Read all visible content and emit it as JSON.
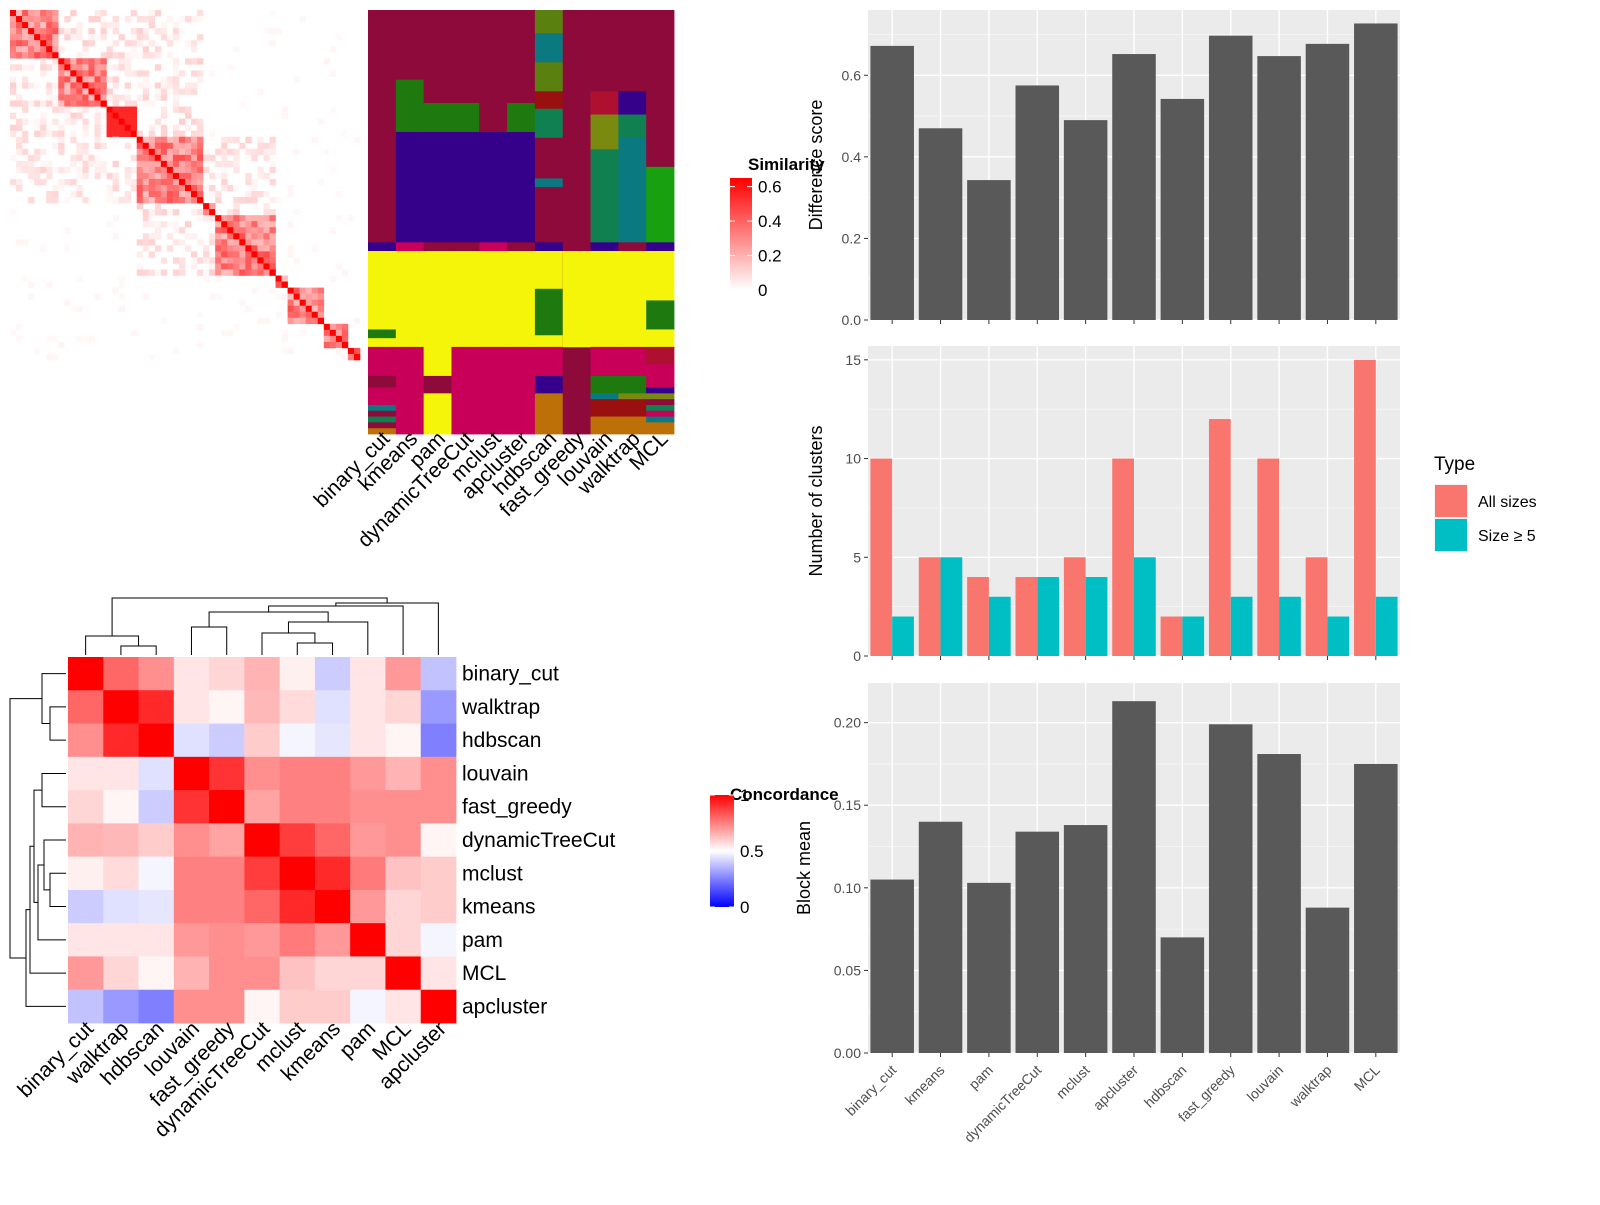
{
  "methods": [
    "binary_cut",
    "kmeans",
    "pam",
    "dynamicTreeCut",
    "mclust",
    "apcluster",
    "hdbscan",
    "fast_greedy",
    "louvain",
    "walktrap",
    "MCL"
  ],
  "similarity_legend": {
    "title": "Similarity",
    "ticks": [
      "0",
      "0.2",
      "0.4",
      "0.6"
    ],
    "tick_values": [
      0,
      0.2,
      0.4,
      0.6
    ],
    "max": 0.65
  },
  "concordance_legend": {
    "title": "Concordance",
    "ticks": [
      "0",
      "0.5",
      "1"
    ],
    "tick_values": [
      0,
      0.5,
      1
    ]
  },
  "heatmap_order": [
    "binary_cut",
    "walktrap",
    "hdbscan",
    "louvain",
    "fast_greedy",
    "dynamicTreeCut",
    "mclust",
    "kmeans",
    "pam",
    "MCL",
    "apcluster"
  ],
  "concordance_matrix": [
    [
      1.0,
      0.8,
      0.72,
      0.55,
      0.58,
      0.65,
      0.53,
      0.4,
      0.55,
      0.7,
      0.38
    ],
    [
      0.8,
      1.0,
      0.92,
      0.55,
      0.52,
      0.64,
      0.57,
      0.44,
      0.55,
      0.58,
      0.3
    ],
    [
      0.72,
      0.92,
      1.0,
      0.44,
      0.4,
      0.6,
      0.48,
      0.45,
      0.55,
      0.52,
      0.25
    ],
    [
      0.55,
      0.55,
      0.44,
      1.0,
      0.9,
      0.72,
      0.75,
      0.75,
      0.7,
      0.65,
      0.72
    ],
    [
      0.58,
      0.52,
      0.4,
      0.9,
      1.0,
      0.68,
      0.75,
      0.75,
      0.72,
      0.72,
      0.72
    ],
    [
      0.65,
      0.64,
      0.6,
      0.72,
      0.68,
      1.0,
      0.88,
      0.8,
      0.7,
      0.72,
      0.52
    ],
    [
      0.53,
      0.57,
      0.48,
      0.75,
      0.75,
      0.88,
      1.0,
      0.92,
      0.76,
      0.62,
      0.6
    ],
    [
      0.4,
      0.44,
      0.45,
      0.75,
      0.75,
      0.8,
      0.92,
      1.0,
      0.7,
      0.58,
      0.6
    ],
    [
      0.55,
      0.55,
      0.55,
      0.7,
      0.72,
      0.7,
      0.76,
      0.7,
      1.0,
      0.58,
      0.48
    ],
    [
      0.7,
      0.58,
      0.52,
      0.65,
      0.72,
      0.72,
      0.62,
      0.58,
      0.58,
      1.0,
      0.55
    ],
    [
      0.38,
      0.3,
      0.25,
      0.72,
      0.72,
      0.52,
      0.6,
      0.6,
      0.48,
      0.55,
      1.0
    ]
  ],
  "cluster_colors": {
    "purple": "#8E0A3A",
    "green": "#1E7A0E",
    "indigo": "#35008A",
    "yellow": "#F5F50A",
    "magenta": "#C8005A",
    "olive": "#5A8010",
    "teal": "#0A7A80",
    "darkred": "#9A1010",
    "seagreen": "#108050",
    "orange": "#BE7008",
    "khaki": "#7A8A10",
    "brightgreen": "#18A010",
    "crimson": "#B01030"
  },
  "bar_color": "#595959",
  "type_colors": {
    "all": "#F8766D",
    "size5": "#00BFC4"
  },
  "charts": [
    {
      "chart_data": {
        "type": "bar",
        "categories": [
          "binary_cut",
          "kmeans",
          "pam",
          "dynamicTreeCut",
          "mclust",
          "apcluster",
          "hdbscan",
          "fast_greedy",
          "louvain",
          "walktrap",
          "MCL"
        ],
        "values": [
          0.672,
          0.47,
          0.343,
          0.575,
          0.49,
          0.652,
          0.542,
          0.697,
          0.647,
          0.677,
          0.727
        ],
        "ylabel": "Difference score",
        "ylim": [
          0,
          0.76
        ],
        "yticks": [
          0.0,
          0.2,
          0.4,
          0.6
        ],
        "ytick_labels": [
          "0.0",
          "0.2",
          "0.4",
          "0.6"
        ],
        "grid": true
      }
    },
    {
      "chart_data": {
        "type": "bar",
        "categories": [
          "binary_cut",
          "kmeans",
          "pam",
          "dynamicTreeCut",
          "mclust",
          "apcluster",
          "hdbscan",
          "fast_greedy",
          "louvain",
          "walktrap",
          "MCL"
        ],
        "series": [
          {
            "name": "All sizes",
            "values": [
              10,
              5,
              4,
              4,
              5,
              10,
              2,
              12,
              10,
              5,
              15
            ]
          },
          {
            "name": "Size ≥ 5",
            "values": [
              2,
              5,
              3,
              4,
              4,
              5,
              2,
              3,
              3,
              2,
              3
            ]
          }
        ],
        "ylabel": "Number of clusters",
        "ylim": [
          0,
          15.7
        ],
        "yticks": [
          0,
          5,
          10,
          15
        ],
        "ytick_labels": [
          "0",
          "5",
          "10",
          "15"
        ],
        "legend_title": "Type",
        "legend_position": "right",
        "grid": true
      }
    },
    {
      "chart_data": {
        "type": "bar",
        "categories": [
          "binary_cut",
          "kmeans",
          "pam",
          "dynamicTreeCut",
          "mclust",
          "apcluster",
          "hdbscan",
          "fast_greedy",
          "louvain",
          "walktrap",
          "MCL"
        ],
        "values": [
          0.105,
          0.14,
          0.103,
          0.134,
          0.138,
          0.213,
          0.07,
          0.199,
          0.181,
          0.088,
          0.175
        ],
        "ylabel": "Block mean",
        "ylim": [
          0,
          0.224
        ],
        "yticks": [
          0.0,
          0.05,
          0.1,
          0.15,
          0.2
        ],
        "ytick_labels": [
          "0.00",
          "0.05",
          "0.10",
          "0.15",
          "0.20"
        ],
        "xtick_labels": [
          "binary_cut",
          "kmeans",
          "pam",
          "dynamicTreeCut",
          "mclust",
          "apcluster",
          "hdbscan",
          "fast_greedy",
          "louvain",
          "walktrap",
          "MCL"
        ],
        "grid": true
      }
    }
  ]
}
